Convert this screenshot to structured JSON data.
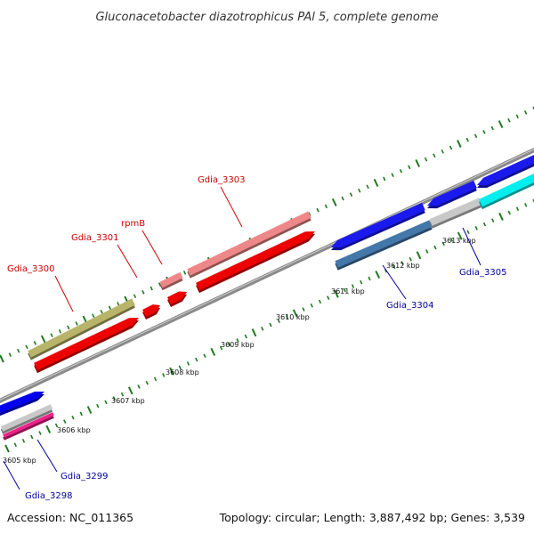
{
  "title": "Gluconacetobacter diazotrophicus PAl 5, complete genome",
  "footer": {
    "accession": "Accession: NC_011365",
    "summary": "Topology: circular; Length: 3,887,492 bp; Genes: 3,539"
  },
  "colors": {
    "backbone": "#8a8a8a",
    "tick": "#1e7a1e",
    "label_top": "#cc0000",
    "label_bottom": "#000099"
  },
  "ticks": [
    {
      "label": "3605 kbp"
    },
    {
      "label": "3606 kbp"
    },
    {
      "label": "3607 kbp"
    },
    {
      "label": "3608 kbp"
    },
    {
      "label": "3609 kbp"
    },
    {
      "label": "3610 kbp"
    },
    {
      "label": "3611 kbp"
    },
    {
      "label": "3612 kbp"
    },
    {
      "label": "3613 kbp"
    }
  ],
  "genes": [
    {
      "label": "Gdia_3298",
      "color": "#0000ee",
      "strand": "bottom",
      "shown": true
    },
    {
      "label": "Gdia_3299",
      "color": "#c8c8c8",
      "strand": "bottom",
      "shown": true
    },
    {
      "label": "",
      "color": "#ee2288",
      "strand": "bottom",
      "shown": false
    },
    {
      "label": "Gdia_3300",
      "color": "#b8b46a",
      "strand": "top",
      "shown": true
    },
    {
      "label": "",
      "color": "#ee0000",
      "strand": "top",
      "shown": false
    },
    {
      "label": "",
      "color": "#ee0000",
      "strand": "top",
      "shown": false
    },
    {
      "label": "Gdia_3301",
      "color": "#ee8888",
      "strand": "top",
      "shown": true
    },
    {
      "label": "rpmB",
      "color": "#ee0000",
      "strand": "top",
      "shown": true
    },
    {
      "label": "Gdia_3303",
      "color": "#ee8888",
      "strand": "top",
      "shown": true
    },
    {
      "label": "",
      "color": "#ee0000",
      "strand": "top",
      "shown": false
    },
    {
      "label": "",
      "color": "#1a1aee",
      "strand": "top",
      "shown": false
    },
    {
      "label": "Gdia_3304",
      "color": "#4477aa",
      "strand": "bottom",
      "shown": true
    },
    {
      "label": "",
      "color": "#1a1aee",
      "strand": "top",
      "shown": false
    },
    {
      "label": "Gdia_3305",
      "color": "#c8c8c8",
      "strand": "bottom",
      "shown": true
    },
    {
      "label": "",
      "color": "#1a1aee",
      "strand": "top",
      "shown": false
    },
    {
      "label": "",
      "color": "#00eeee",
      "strand": "bottom",
      "shown": false
    }
  ]
}
